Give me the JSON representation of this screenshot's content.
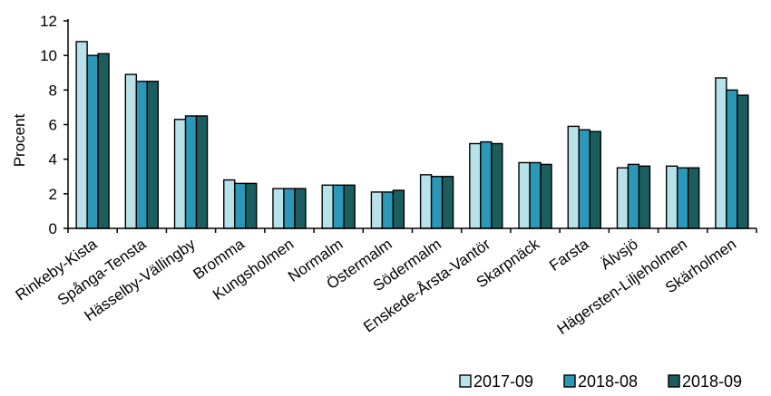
{
  "chart_data": {
    "type": "bar",
    "title": "",
    "xlabel": "",
    "ylabel": "Procent",
    "ylim": [
      0,
      12
    ],
    "yticks": [
      0,
      2,
      4,
      6,
      8,
      10,
      12
    ],
    "grid": false,
    "legend_position": "bottom-right",
    "categories": [
      "Rinkeby-Kista",
      "Spånga-Tensta",
      "Hässelby-Vällingby",
      "Bromma",
      "Kungsholmen",
      "Normalm",
      "Östermalm",
      "Södermalm",
      "Enskede-Årsta-Vantör",
      "Skarpnäck",
      "Farsta",
      "Älvsjö",
      "Hägersten-Liljeholmen",
      "Skärholmen"
    ],
    "series": [
      {
        "name": "2017-09",
        "color": "#b8e2ea",
        "values": [
          10.8,
          8.9,
          6.3,
          2.8,
          2.3,
          2.5,
          2.1,
          3.1,
          4.9,
          3.8,
          5.9,
          3.5,
          3.6,
          8.7
        ]
      },
      {
        "name": "2018-08",
        "color": "#2c98b8",
        "values": [
          10.0,
          8.5,
          6.5,
          2.6,
          2.3,
          2.5,
          2.1,
          3.0,
          5.0,
          3.8,
          5.7,
          3.7,
          3.5,
          8.0
        ]
      },
      {
        "name": "2018-09",
        "color": "#1c5e5e",
        "values": [
          10.1,
          8.5,
          6.5,
          2.6,
          2.3,
          2.5,
          2.2,
          3.0,
          4.9,
          3.7,
          5.6,
          3.6,
          3.5,
          7.7
        ]
      }
    ]
  }
}
